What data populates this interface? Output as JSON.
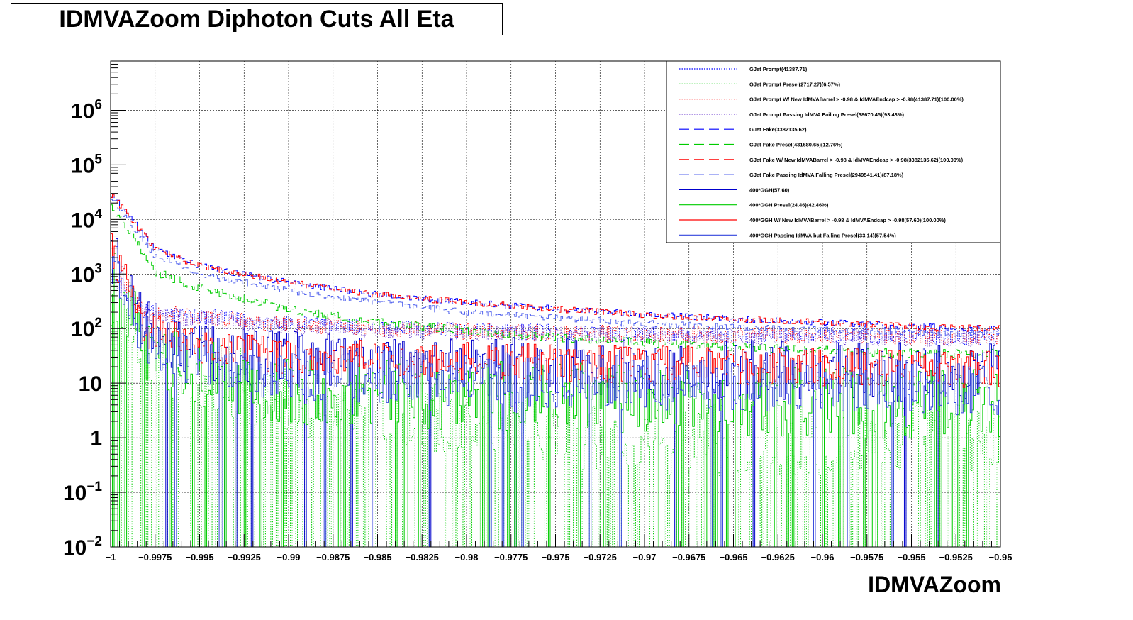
{
  "chart_data": {
    "type": "histogram",
    "title": "IDMVAZoom Diphoton Cuts All Eta",
    "xlabel": "IDMVAZoom",
    "ylabel": "",
    "xlim": [
      -1,
      -0.95
    ],
    "ylog": true,
    "ylim": [
      0.01,
      8000000
    ],
    "grid": true,
    "legend_position": "top-right",
    "x_tick_labels": [
      "−1",
      "−0.9975",
      "−0.995",
      "−0.9925",
      "−0.99",
      "−0.9875",
      "−0.985",
      "−0.9825",
      "−0.98",
      "−0.9775",
      "−0.975",
      "−0.9725",
      "−0.97",
      "−0.9675",
      "−0.965",
      "−0.9625",
      "−0.96",
      "−0.9575",
      "−0.955",
      "−0.9525",
      "−0.95"
    ],
    "y_tick_labels": [
      {
        "value": 0.01,
        "base": "10",
        "exp": "−2"
      },
      {
        "value": 0.1,
        "base": "10",
        "exp": "−1"
      },
      {
        "value": 1,
        "base": "1",
        "exp": ""
      },
      {
        "value": 10,
        "base": "10",
        "exp": ""
      },
      {
        "value": 100,
        "base": "10",
        "exp": "2"
      },
      {
        "value": 1000,
        "base": "10",
        "exp": "3"
      },
      {
        "value": 10000,
        "base": "10",
        "exp": "4"
      },
      {
        "value": 100000,
        "base": "10",
        "exp": "5"
      },
      {
        "value": 1000000,
        "base": "10",
        "exp": "6"
      }
    ],
    "series": [
      {
        "name": "GJet Prompt(41387.71)",
        "color": "#0000ff",
        "style": "dotted",
        "profile": [
          [
            -1,
            1000
          ],
          [
            -0.998,
            200
          ],
          [
            -0.99,
            120
          ],
          [
            -0.98,
            90
          ],
          [
            -0.97,
            80
          ],
          [
            -0.95,
            70
          ]
        ],
        "noise": 0.15,
        "zero_prob": 0
      },
      {
        "name": "GJet Prompt Presel(2717.27)(6.57%)",
        "color": "#00cc00",
        "style": "dotted",
        "profile": [
          [
            -1,
            150
          ],
          [
            -0.998,
            30
          ],
          [
            -0.99,
            5
          ],
          [
            -0.98,
            2
          ],
          [
            -0.97,
            1
          ],
          [
            -0.95,
            1
          ]
        ],
        "noise": 0.7,
        "zero_prob": 0.35
      },
      {
        "name": "GJet Prompt W/ New IdMVABarrel > -0.98 & IdMVAEndcap > -0.98(41387.71)(100.00%)",
        "color": "#ff0000",
        "style": "dotted",
        "profile": [
          [
            -1,
            1000
          ],
          [
            -0.998,
            200
          ],
          [
            -0.99,
            120
          ],
          [
            -0.98,
            90
          ],
          [
            -0.97,
            80
          ],
          [
            -0.95,
            70
          ]
        ],
        "noise": 0.15,
        "zero_prob": 0
      },
      {
        "name": "GJet Prompt Passing IdMVA Failing Presel(38670.45)(93.43%)",
        "color": "#6633cc",
        "style": "dotted",
        "profile": [
          [
            -1,
            900
          ],
          [
            -0.998,
            180
          ],
          [
            -0.99,
            110
          ],
          [
            -0.98,
            85
          ],
          [
            -0.97,
            75
          ],
          [
            -0.95,
            65
          ]
        ],
        "noise": 0.15,
        "zero_prob": 0
      },
      {
        "name": "GJet Fake(3382135.62)",
        "color": "#0000ff",
        "style": "dashed",
        "profile": [
          [
            -1,
            30000
          ],
          [
            -0.9975,
            3000
          ],
          [
            -0.995,
            1400
          ],
          [
            -0.99,
            700
          ],
          [
            -0.985,
            420
          ],
          [
            -0.98,
            300
          ],
          [
            -0.975,
            230
          ],
          [
            -0.97,
            180
          ],
          [
            -0.965,
            150
          ],
          [
            -0.96,
            130
          ],
          [
            -0.955,
            110
          ],
          [
            -0.95,
            100
          ]
        ],
        "noise": 0.06,
        "zero_prob": 0
      },
      {
        "name": "GJet Fake Presel(431680.65)(12.76%)",
        "color": "#00cc00",
        "style": "dashed",
        "profile": [
          [
            -1,
            20000
          ],
          [
            -0.9975,
            1100
          ],
          [
            -0.995,
            550
          ],
          [
            -0.99,
            230
          ],
          [
            -0.985,
            130
          ],
          [
            -0.98,
            90
          ],
          [
            -0.975,
            70
          ],
          [
            -0.97,
            55
          ],
          [
            -0.965,
            45
          ],
          [
            -0.96,
            40
          ],
          [
            -0.955,
            35
          ],
          [
            -0.95,
            35
          ]
        ],
        "noise": 0.08,
        "zero_prob": 0
      },
      {
        "name": "GJet Fake W/ New IdMVABarrel > -0.98 & IdMVAEndcap > -0.98(3382135.62)(100.00%)",
        "color": "#ff0000",
        "style": "dashed",
        "profile": [
          [
            -1,
            30000
          ],
          [
            -0.9975,
            3000
          ],
          [
            -0.995,
            1400
          ],
          [
            -0.99,
            700
          ],
          [
            -0.985,
            420
          ],
          [
            -0.98,
            300
          ],
          [
            -0.975,
            230
          ],
          [
            -0.97,
            180
          ],
          [
            -0.965,
            150
          ],
          [
            -0.96,
            130
          ],
          [
            -0.955,
            110
          ],
          [
            -0.95,
            100
          ]
        ],
        "noise": 0.06,
        "zero_prob": 0
      },
      {
        "name": "GJet Fake Passing IdMVA Falling Presel(2949541.41)(87.18%)",
        "color": "#5566ee",
        "style": "dashed",
        "profile": [
          [
            -1,
            25000
          ],
          [
            -0.9975,
            2200
          ],
          [
            -0.995,
            1000
          ],
          [
            -0.99,
            500
          ],
          [
            -0.985,
            300
          ],
          [
            -0.98,
            200
          ],
          [
            -0.975,
            160
          ],
          [
            -0.97,
            125
          ],
          [
            -0.965,
            105
          ],
          [
            -0.96,
            95
          ],
          [
            -0.955,
            85
          ],
          [
            -0.95,
            80
          ]
        ],
        "noise": 0.06,
        "zero_prob": 0
      },
      {
        "name": "400*GGH(57.60)",
        "color": "#0000cc",
        "style": "solid",
        "profile": [
          [
            -1,
            3000
          ],
          [
            -0.998,
            100
          ],
          [
            -0.995,
            40
          ],
          [
            -0.99,
            25
          ],
          [
            -0.98,
            20
          ],
          [
            -0.97,
            18
          ],
          [
            -0.95,
            15
          ]
        ],
        "noise": 0.55,
        "zero_prob": 0.03
      },
      {
        "name": "400*GGH Presel(24.46)(42.46%)",
        "color": "#00cc00",
        "style": "solid",
        "profile": [
          [
            -1,
            1000
          ],
          [
            -0.998,
            40
          ],
          [
            -0.995,
            15
          ],
          [
            -0.99,
            8
          ],
          [
            -0.98,
            6
          ],
          [
            -0.97,
            5
          ],
          [
            -0.95,
            4
          ]
        ],
        "noise": 0.65,
        "zero_prob": 0.08
      },
      {
        "name": "400*GGH W/ New IdMVABarrel > -0.98 & IdMVAEndcap > -0.98(57.60)(100.00%)",
        "color": "#ff0000",
        "style": "solid",
        "profile": [
          [
            -1,
            3000
          ],
          [
            -0.998,
            100
          ],
          [
            -0.995,
            45
          ],
          [
            -0.99,
            30
          ],
          [
            -0.98,
            25
          ],
          [
            -0.97,
            22
          ],
          [
            -0.95,
            18
          ]
        ],
        "noise": 0.35,
        "zero_prob": 0
      },
      {
        "name": "400*GGH Passing IdMVA but Failing Presel(33.14)(57.54%)",
        "color": "#3344dd",
        "style": "solid",
        "profile": [
          [
            -1,
            2000
          ],
          [
            -0.998,
            60
          ],
          [
            -0.995,
            25
          ],
          [
            -0.99,
            15
          ],
          [
            -0.98,
            12
          ],
          [
            -0.97,
            10
          ],
          [
            -0.95,
            8
          ]
        ],
        "noise": 0.5,
        "zero_prob": 0.03
      }
    ]
  }
}
